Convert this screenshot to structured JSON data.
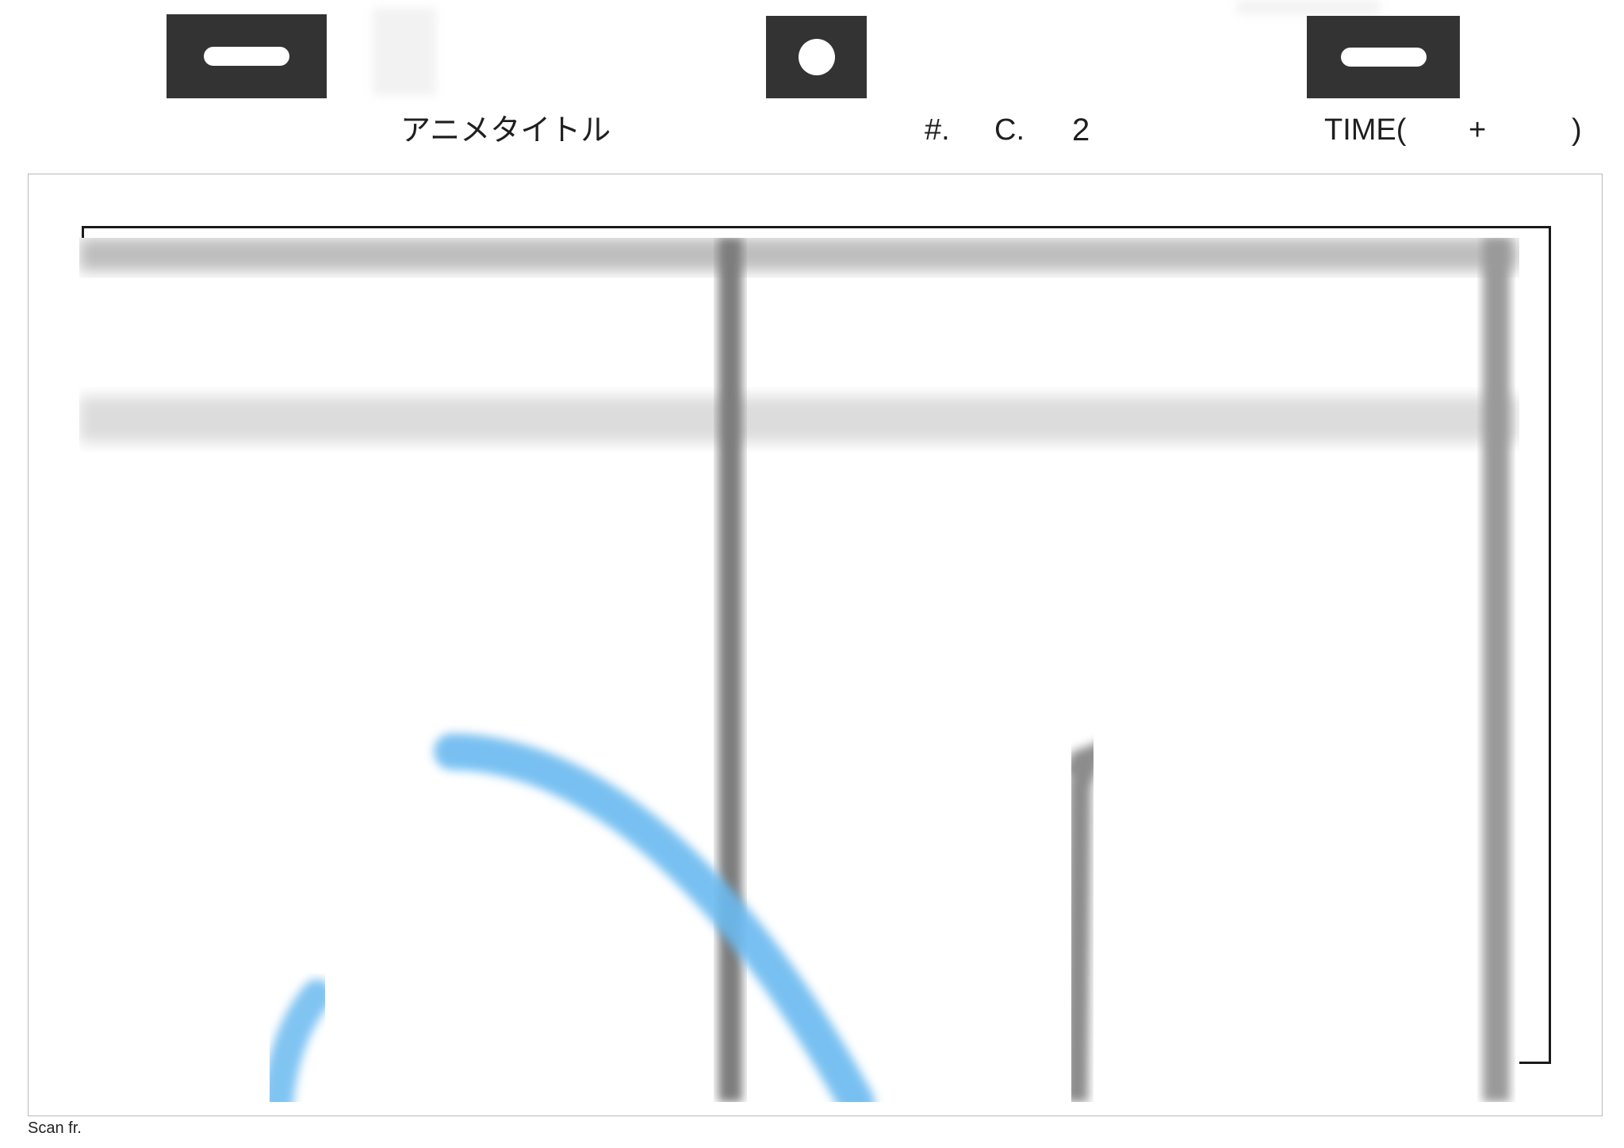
{
  "sheet_header": {
    "anime_title_label": "アニメタイトル",
    "episode_label": "#.",
    "cut_label": "C.",
    "cut_number": "2",
    "time_label": "TIME(",
    "time_plus": "+",
    "time_close": ")"
  },
  "footer": {
    "scan_frame_label": "Scan fr."
  },
  "colors": {
    "peg_hole_fill": "#333333",
    "pencil_line": "#7a7a7a",
    "blue_line": "#6bbaf0",
    "frame_border": "#1a1a1a"
  },
  "icons": {
    "left_peg": "slot-peg-hole-icon",
    "center_peg": "round-peg-hole-icon",
    "right_peg": "slot-peg-hole-icon"
  }
}
